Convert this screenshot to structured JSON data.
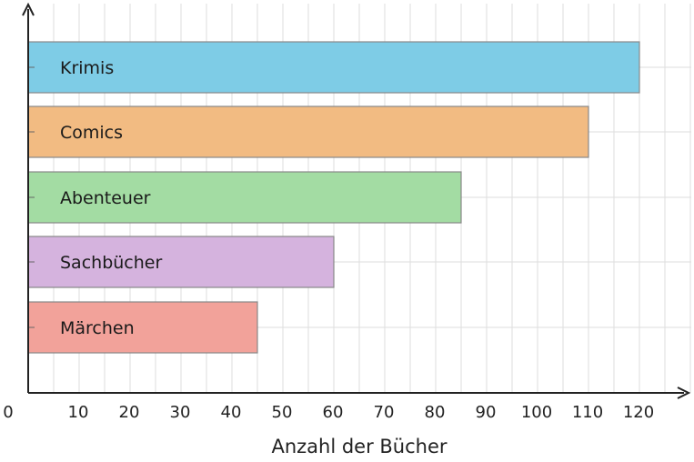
{
  "chart_data": {
    "type": "bar",
    "orientation": "horizontal",
    "categories": [
      "Krimis",
      "Comics",
      "Abenteuer",
      "Sachbücher",
      "Märchen"
    ],
    "values": [
      120,
      110,
      85,
      60,
      45
    ],
    "colors": [
      "#7ecce6",
      "#f2bb82",
      "#a3dca3",
      "#d5b3de",
      "#f2a29a"
    ],
    "xlabel": "Anzahl der Bücher",
    "ylabel": "",
    "xlim": [
      0,
      130
    ],
    "x_ticks": [
      0,
      10,
      20,
      30,
      40,
      50,
      60,
      70,
      80,
      90,
      100,
      110,
      120
    ],
    "x_tick_labels": [
      "0",
      "10",
      "20",
      "30",
      "40",
      "50",
      "60",
      "70",
      "80",
      "90",
      "100",
      "110",
      "120"
    ],
    "grid": true,
    "labels_inside_bars": true
  }
}
